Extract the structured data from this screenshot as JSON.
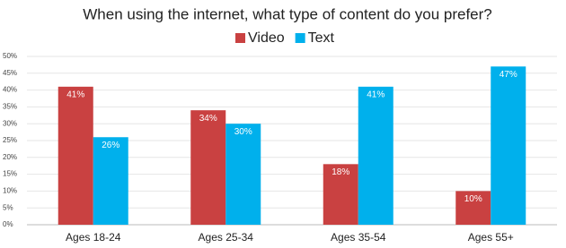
{
  "chart_data": {
    "type": "bar",
    "title": "When using the internet, what type of content do you prefer?",
    "categories": [
      "Ages 18-24",
      "Ages 25-34",
      "Ages 35-54",
      "Ages 55+"
    ],
    "series": [
      {
        "name": "Video",
        "color": "#c94141",
        "values": [
          41,
          34,
          18,
          10
        ],
        "value_labels": [
          "41%",
          "34%",
          "18%",
          "10%"
        ]
      },
      {
        "name": "Text",
        "color": "#00b0ec",
        "values": [
          26,
          30,
          41,
          47
        ],
        "value_labels": [
          "26%",
          "30%",
          "41%",
          "47%"
        ]
      }
    ],
    "ylim": [
      0,
      50
    ],
    "yticks": [
      {
        "value": 0,
        "label": "0%"
      },
      {
        "value": 5,
        "label": "5%"
      },
      {
        "value": 10,
        "label": "10%"
      },
      {
        "value": 15,
        "label": "15%"
      },
      {
        "value": 20,
        "label": "20%"
      },
      {
        "value": 25,
        "label": "25%"
      },
      {
        "value": 30,
        "label": "30%"
      },
      {
        "value": 35,
        "label": "35%"
      },
      {
        "value": 40,
        "label": "40%"
      },
      {
        "value": 45,
        "label": "45%"
      },
      {
        "value": 50,
        "label": "50%"
      }
    ],
    "grid": true,
    "legend": "top"
  }
}
